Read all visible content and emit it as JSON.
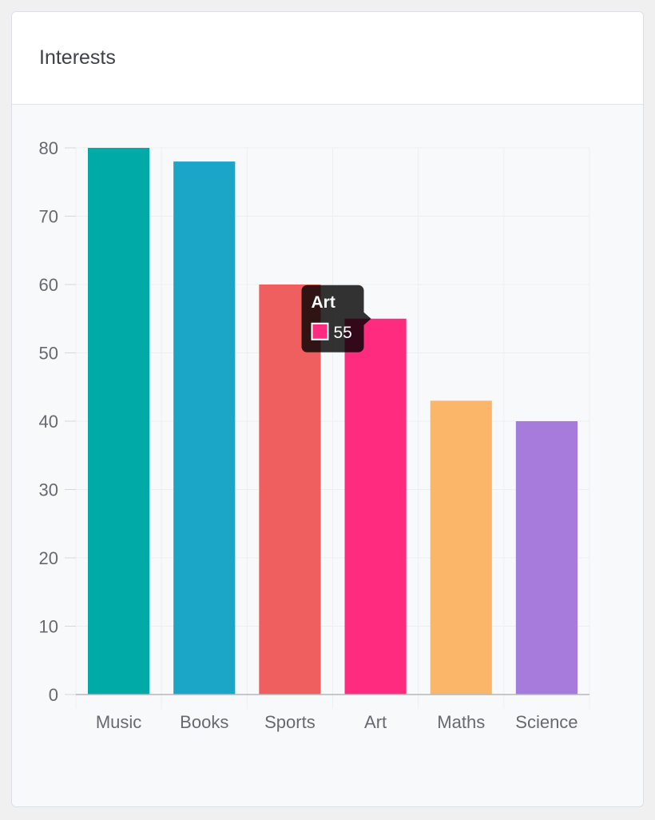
{
  "card": {
    "title": "Interests"
  },
  "chart_data": {
    "type": "bar",
    "title": "",
    "xlabel": "",
    "ylabel": "",
    "categories": [
      "Music",
      "Books",
      "Sports",
      "Art",
      "Maths",
      "Science"
    ],
    "values": [
      80,
      78,
      60,
      55,
      43,
      40
    ],
    "colors": [
      "#00aaa6",
      "#1ba6c8",
      "#ef5f5f",
      "#ff2b7e",
      "#fcb66a",
      "#a77bdb"
    ],
    "ylim": [
      0,
      80
    ],
    "yticks": [
      0,
      10,
      20,
      30,
      40,
      50,
      60,
      70,
      80
    ],
    "grid": true,
    "legend": "none"
  },
  "tooltip": {
    "title": "Art",
    "value": "55",
    "swatch_color": "#ff2b7e",
    "anchor_category": "Art"
  }
}
